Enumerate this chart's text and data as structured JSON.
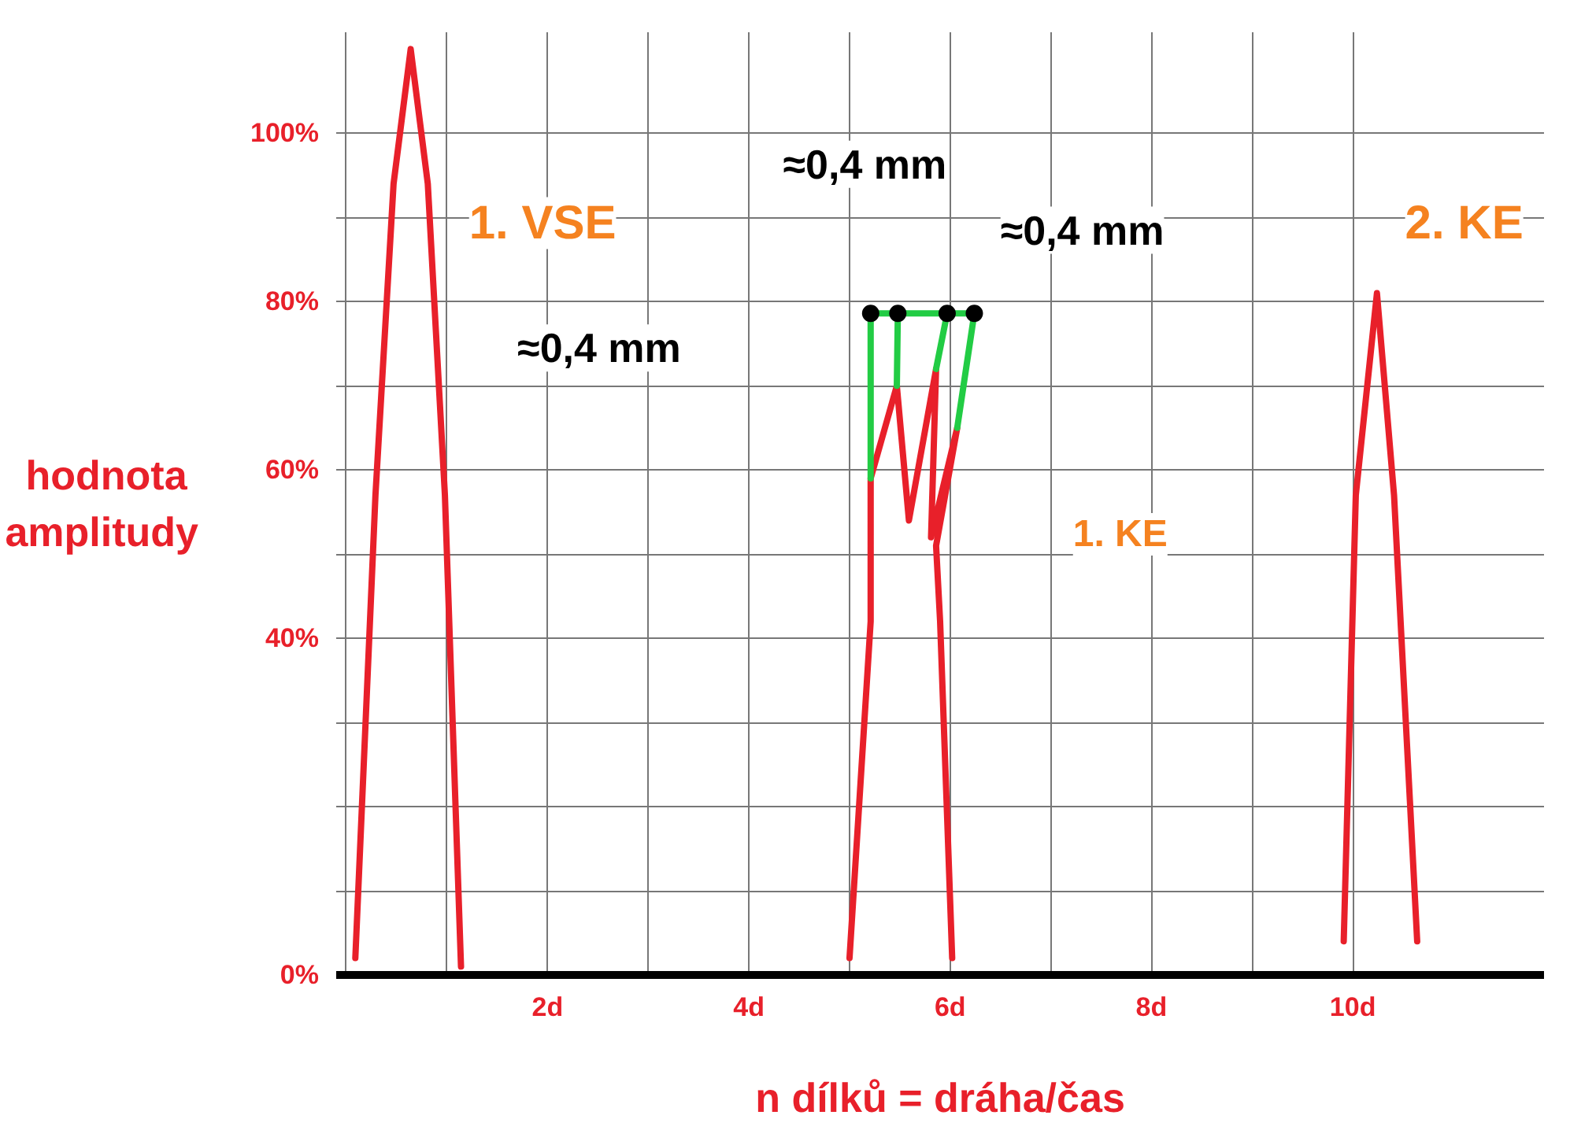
{
  "chart_data": {
    "type": "line",
    "xlabel": "n dílků = dráha/čas",
    "ylabel": "hodnota amplitudy",
    "xlim": [
      -0.1,
      11.9
    ],
    "ylim": [
      0,
      112
    ],
    "xticks": [
      {
        "value": 0,
        "label": null
      },
      {
        "value": 1,
        "label": null
      },
      {
        "value": 2,
        "label": "2d"
      },
      {
        "value": 3,
        "label": null
      },
      {
        "value": 4,
        "label": "4d"
      },
      {
        "value": 5,
        "label": null
      },
      {
        "value": 6,
        "label": "6d"
      },
      {
        "value": 7,
        "label": null
      },
      {
        "value": 8,
        "label": "8d"
      },
      {
        "value": 9,
        "label": null
      },
      {
        "value": 10,
        "label": "10d"
      }
    ],
    "yticks": [
      {
        "value": 0,
        "label": "0%"
      },
      {
        "value": 10,
        "label": null
      },
      {
        "value": 20,
        "label": null
      },
      {
        "value": 30,
        "label": null
      },
      {
        "value": 40,
        "label": "40%"
      },
      {
        "value": 50,
        "label": null
      },
      {
        "value": 60,
        "label": "60%"
      },
      {
        "value": 70,
        "label": null
      },
      {
        "value": 80,
        "label": "80%"
      },
      {
        "value": 90,
        "label": null
      },
      {
        "value": 100,
        "label": "100%"
      }
    ],
    "grid": true,
    "line_style": "solid",
    "series": [
      {
        "color": "#e8202a",
        "x": [
          0.09,
          0.29,
          0.47,
          0.64,
          0.81,
          0.98,
          1.14
        ],
        "values": [
          2,
          57,
          94,
          110,
          94,
          57,
          1
        ]
      },
      {
        "color": "#e8202a",
        "x": [
          5.0,
          5.21,
          5.21,
          5.47,
          5.59,
          5.86,
          5.81,
          6.07,
          5.86,
          5.9,
          6.02
        ],
        "values": [
          2,
          42,
          59,
          70,
          54,
          72,
          52,
          65,
          51,
          42,
          2
        ]
      },
      {
        "color": "#e8202a",
        "x": [
          9.91,
          10.03,
          10.24,
          10.41,
          10.64
        ],
        "values": [
          4,
          57,
          81,
          57,
          4
        ]
      },
      {
        "color": "#22cc44",
        "x": [
          5.21,
          5.21
        ],
        "values": [
          78.6,
          59
        ]
      },
      {
        "color": "#22cc44",
        "x": [
          5.48,
          5.47
        ],
        "values": [
          78.6,
          70
        ]
      },
      {
        "color": "#22cc44",
        "x": [
          5.97,
          5.86
        ],
        "values": [
          78.6,
          72
        ]
      },
      {
        "color": "#22cc44",
        "x": [
          6.24,
          6.07
        ],
        "values": [
          78.6,
          65
        ]
      },
      {
        "color": "#22cc44",
        "x": [
          5.21,
          6.24
        ],
        "values": [
          78.6,
          78.6
        ]
      },
      {
        "type": "scatter",
        "marker": "circle",
        "color": "#000000",
        "x": [
          5.21,
          5.48,
          5.97,
          6.24
        ],
        "values": [
          78.6,
          78.6,
          78.6,
          78.6
        ]
      }
    ],
    "annotations": [
      "1. VSE",
      "2. KE",
      "1. KE",
      "≈0,4 mm",
      "≈0,4 mm",
      "≈0,4 mm"
    ]
  }
}
